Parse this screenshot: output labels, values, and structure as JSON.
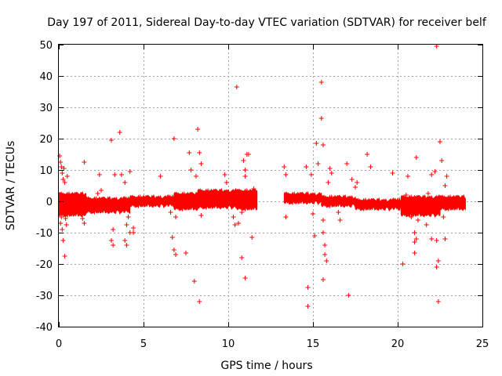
{
  "chart_data": {
    "type": "scatter",
    "title": "Day 197 of 2011, Sidereal Day-to-day VTEC variation (SDTVAR) for receiver belf",
    "xlabel": "GPS time / hours",
    "ylabel": "SDTVAR / TECUs",
    "xlim": [
      0,
      25
    ],
    "ylim": [
      -40,
      50
    ],
    "xticks": [
      0,
      5,
      10,
      15,
      20,
      25
    ],
    "yticks": [
      -40,
      -30,
      -20,
      -10,
      0,
      10,
      20,
      30,
      40,
      50
    ],
    "grid": true,
    "marker": "+",
    "color": "#ff0000",
    "dense_bands": [
      {
        "x0": 0.0,
        "x1": 1.6,
        "ymin": -5,
        "ymax": 3
      },
      {
        "x0": 1.6,
        "x1": 4.2,
        "ymin": -4,
        "ymax": 1.5
      },
      {
        "x0": 4.2,
        "x1": 6.8,
        "ymin": -2,
        "ymax": 2
      },
      {
        "x0": 6.8,
        "x1": 8.2,
        "ymin": -3,
        "ymax": 3
      },
      {
        "x0": 8.2,
        "x1": 10.5,
        "ymin": -2.5,
        "ymax": 4
      },
      {
        "x0": 10.5,
        "x1": 11.7,
        "ymin": -3,
        "ymax": 4
      },
      {
        "x0": 13.3,
        "x1": 15.5,
        "ymin": -1,
        "ymax": 3
      },
      {
        "x0": 15.5,
        "x1": 17.5,
        "ymin": -2,
        "ymax": 2
      },
      {
        "x0": 17.5,
        "x1": 20.2,
        "ymin": -3,
        "ymax": 1
      },
      {
        "x0": 20.2,
        "x1": 22.5,
        "ymin": -5,
        "ymax": 2
      },
      {
        "x0": 22.5,
        "x1": 24.0,
        "ymin": -3,
        "ymax": 2
      }
    ],
    "points": [
      [
        0.05,
        14.5
      ],
      [
        0.1,
        12.5
      ],
      [
        0.15,
        11
      ],
      [
        0.2,
        9
      ],
      [
        0.25,
        7
      ],
      [
        0.3,
        10.5
      ],
      [
        0.35,
        6
      ],
      [
        0.1,
        -7
      ],
      [
        0.2,
        -9
      ],
      [
        0.25,
        -12.5
      ],
      [
        0.15,
        -5
      ],
      [
        0.3,
        -3
      ],
      [
        0.4,
        -5.5
      ],
      [
        0.35,
        -17.5
      ],
      [
        0.5,
        8
      ],
      [
        0.45,
        -7.5
      ],
      [
        1.5,
        12.5
      ],
      [
        1.4,
        -5.5
      ],
      [
        1.5,
        -7
      ],
      [
        1.6,
        -2
      ],
      [
        2.4,
        8.5
      ],
      [
        2.5,
        3.5
      ],
      [
        2.3,
        2.5
      ],
      [
        3.1,
        19.5
      ],
      [
        3.2,
        -9
      ],
      [
        3.1,
        -12.5
      ],
      [
        3.2,
        -14
      ],
      [
        3.3,
        8.5
      ],
      [
        3.6,
        22
      ],
      [
        3.7,
        8.5
      ],
      [
        3.9,
        6
      ],
      [
        3.9,
        -12.5
      ],
      [
        4.0,
        -14
      ],
      [
        4.1,
        -5
      ],
      [
        4.2,
        -10
      ],
      [
        4.2,
        9.5
      ],
      [
        4.4,
        -8.5
      ],
      [
        4.4,
        -10
      ],
      [
        4.0,
        -7.5
      ],
      [
        6.0,
        8
      ],
      [
        6.6,
        -3.5
      ],
      [
        6.7,
        -11.5
      ],
      [
        6.8,
        -15.5
      ],
      [
        6.9,
        -17
      ],
      [
        6.8,
        20
      ],
      [
        6.9,
        -5
      ],
      [
        7.5,
        -16.5
      ],
      [
        7.7,
        15.5
      ],
      [
        7.8,
        10
      ],
      [
        8.0,
        -25.5
      ],
      [
        8.2,
        23
      ],
      [
        8.3,
        15.5
      ],
      [
        8.4,
        12
      ],
      [
        8.4,
        -4.5
      ],
      [
        8.3,
        -32
      ],
      [
        8.1,
        8
      ],
      [
        9.8,
        8.5
      ],
      [
        9.9,
        6
      ],
      [
        10.3,
        -5
      ],
      [
        10.4,
        -7.5
      ],
      [
        10.5,
        36.5
      ],
      [
        10.6,
        -7
      ],
      [
        10.8,
        -3.5
      ],
      [
        10.8,
        -18
      ],
      [
        11.0,
        -24.5
      ],
      [
        11.0,
        10
      ],
      [
        11.1,
        15
      ],
      [
        11.2,
        15
      ],
      [
        11.3,
        -1
      ],
      [
        11.4,
        -11.5
      ],
      [
        11.0,
        8
      ],
      [
        10.9,
        13
      ],
      [
        11.5,
        4
      ],
      [
        13.3,
        11
      ],
      [
        13.4,
        8.5
      ],
      [
        13.4,
        -5
      ],
      [
        14.6,
        11
      ],
      [
        14.7,
        -27.5
      ],
      [
        14.7,
        -33.5
      ],
      [
        14.9,
        8.5
      ],
      [
        15.0,
        -4
      ],
      [
        15.1,
        -11
      ],
      [
        15.2,
        18.5
      ],
      [
        15.3,
        12
      ],
      [
        15.5,
        38
      ],
      [
        15.5,
        26.5
      ],
      [
        15.6,
        18
      ],
      [
        15.6,
        -25
      ],
      [
        15.6,
        -10
      ],
      [
        15.7,
        -14
      ],
      [
        15.7,
        -17
      ],
      [
        15.8,
        -19
      ],
      [
        15.6,
        -6
      ],
      [
        15.9,
        6
      ],
      [
        16.0,
        10.5
      ],
      [
        16.1,
        9
      ],
      [
        16.5,
        -3.5
      ],
      [
        16.6,
        -6
      ],
      [
        17.0,
        12
      ],
      [
        17.1,
        -30
      ],
      [
        17.3,
        7
      ],
      [
        17.5,
        4.5
      ],
      [
        17.6,
        6
      ],
      [
        18.2,
        15
      ],
      [
        18.4,
        11
      ],
      [
        19.7,
        9
      ],
      [
        20.3,
        -20
      ],
      [
        20.5,
        2
      ],
      [
        20.6,
        8
      ],
      [
        20.8,
        -5
      ],
      [
        21.0,
        -10
      ],
      [
        21.0,
        -13
      ],
      [
        21.0,
        -16.5
      ],
      [
        21.1,
        -12
      ],
      [
        21.2,
        -6
      ],
      [
        21.1,
        14
      ],
      [
        21.5,
        -4
      ],
      [
        21.7,
        -7.5
      ],
      [
        21.8,
        2.5
      ],
      [
        22.0,
        -12
      ],
      [
        22.2,
        9.5
      ],
      [
        22.3,
        -12.5
      ],
      [
        22.3,
        -21
      ],
      [
        22.4,
        -19
      ],
      [
        22.4,
        -32
      ],
      [
        22.3,
        49.5
      ],
      [
        22.5,
        19
      ],
      [
        22.6,
        13
      ],
      [
        22.7,
        -5
      ],
      [
        22.8,
        -12
      ],
      [
        22.9,
        8
      ],
      [
        23.0,
        -0.5
      ],
      [
        22.8,
        5
      ],
      [
        21.9,
        0.5
      ],
      [
        22.0,
        8.5
      ]
    ]
  }
}
